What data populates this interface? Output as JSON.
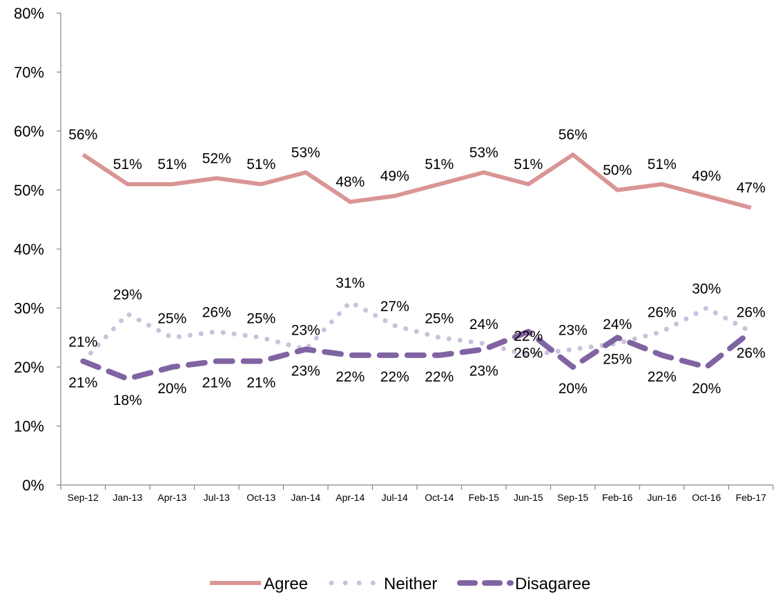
{
  "chart_data": {
    "type": "line",
    "categories": [
      "Sep-12",
      "Jan-13",
      "Apr-13",
      "Jul-13",
      "Oct-13",
      "Jan-14",
      "Apr-14",
      "Jul-14",
      "Oct-14",
      "Feb-15",
      "Jun-15",
      "Sep-15",
      "Feb-16",
      "Jun-16",
      "Oct-16",
      "Feb-17"
    ],
    "series": [
      {
        "name": "Agree",
        "color": "#d99594",
        "style": "solid",
        "values": [
          56,
          51,
          51,
          52,
          51,
          53,
          48,
          49,
          51,
          53,
          51,
          56,
          50,
          51,
          49,
          47
        ],
        "labels": [
          "56%",
          "51%",
          "51%",
          "52%",
          "51%",
          "53%",
          "48%",
          "49%",
          "51%",
          "53%",
          "51%",
          "56%",
          "50%",
          "51%",
          "49%",
          "47%"
        ]
      },
      {
        "name": "Neither",
        "color": "#ccc1da",
        "style": "dotted",
        "values": [
          21,
          29,
          25,
          26,
          25,
          23,
          31,
          27,
          25,
          24,
          22,
          23,
          24,
          26,
          30,
          26
        ],
        "labels": [
          "21%",
          "29%",
          "25%",
          "26%",
          "25%",
          "23%",
          "31%",
          "27%",
          "25%",
          "24%",
          "22%",
          "23%",
          "24%",
          "26%",
          "30%",
          "26%"
        ]
      },
      {
        "name": "Disagaree",
        "color": "#8064a2",
        "style": "dashed",
        "values": [
          21,
          18,
          20,
          21,
          21,
          23,
          22,
          22,
          22,
          23,
          26,
          20,
          25,
          22,
          20,
          26
        ],
        "labels": [
          "21%",
          "18%",
          "20%",
          "21%",
          "21%",
          "23%",
          "22%",
          "22%",
          "22%",
          "23%",
          "26%",
          "20%",
          "25%",
          "22%",
          "20%",
          "26%"
        ]
      }
    ],
    "ylim": [
      0,
      80
    ],
    "yticks": [
      "0%",
      "10%",
      "20%",
      "30%",
      "40%",
      "50%",
      "60%",
      "70%",
      "80%"
    ],
    "grid": false,
    "legend_position": "bottom"
  }
}
